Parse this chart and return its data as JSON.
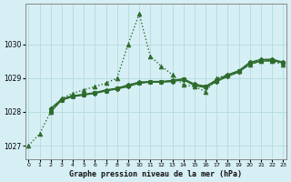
{
  "title": "Graphe pression niveau de la mer (hPa)",
  "bg_color": "#d6eff5",
  "grid_color": "#b8dde0",
  "line_color": "#2d6b2d",
  "x_ticks": [
    0,
    1,
    2,
    3,
    4,
    5,
    6,
    7,
    8,
    9,
    10,
    11,
    12,
    13,
    14,
    15,
    16,
    17,
    18,
    19,
    20,
    21,
    22,
    23
  ],
  "y_ticks": [
    1027,
    1028,
    1029,
    1030
  ],
  "ylim": [
    1026.6,
    1031.2
  ],
  "xlim": [
    -0.3,
    23.3
  ],
  "series": [
    {
      "x": [
        0,
        1,
        2,
        3,
        4,
        5,
        6,
        7,
        8,
        9,
        10,
        11,
        12,
        13,
        14,
        15,
        16,
        17,
        18,
        19,
        20,
        21,
        22,
        23
      ],
      "y": [
        1027.0,
        1027.35,
        1028.0,
        1028.4,
        1028.55,
        1028.65,
        1028.75,
        1028.85,
        1029.0,
        1030.0,
        1030.9,
        1029.65,
        1029.35,
        1029.1,
        1028.8,
        1028.75,
        1028.6,
        1029.0,
        1029.1,
        1029.2,
        1029.4,
        1029.5,
        1029.5,
        1029.4
      ],
      "linestyle": "dotted",
      "marker": "^",
      "markersize": 3.5,
      "linewidth": 1.0
    },
    {
      "x": [
        2,
        3,
        4,
        5,
        6,
        7,
        8,
        9,
        10,
        11,
        12,
        13,
        14,
        15,
        16,
        17,
        18,
        19,
        20,
        21,
        22,
        23
      ],
      "y": [
        1028.0,
        1028.35,
        1028.45,
        1028.5,
        1028.55,
        1028.62,
        1028.68,
        1028.75,
        1028.85,
        1028.88,
        1028.88,
        1028.9,
        1028.95,
        1028.78,
        1028.72,
        1028.9,
        1029.05,
        1029.18,
        1029.42,
        1029.5,
        1029.52,
        1029.45
      ],
      "linestyle": "solid",
      "marker": "D",
      "markersize": 2.5,
      "linewidth": 1.0
    },
    {
      "x": [
        2,
        3,
        4,
        5,
        6,
        7,
        8,
        9,
        10,
        11,
        12,
        13,
        14,
        15,
        16,
        17,
        18,
        19,
        20,
        21,
        22,
        23
      ],
      "y": [
        1028.1,
        1028.38,
        1028.48,
        1028.52,
        1028.57,
        1028.65,
        1028.7,
        1028.8,
        1028.88,
        1028.9,
        1028.9,
        1028.93,
        1028.98,
        1028.82,
        1028.76,
        1028.95,
        1029.1,
        1029.22,
        1029.47,
        1029.55,
        1029.56,
        1029.47
      ],
      "linestyle": "solid",
      "marker": "D",
      "markersize": 2.5,
      "linewidth": 1.0
    },
    {
      "x": [
        2,
        3,
        4,
        5,
        6,
        7,
        8,
        9,
        10,
        11,
        12,
        13,
        14,
        15,
        16,
        17,
        18,
        19,
        20,
        21,
        22,
        23
      ],
      "y": [
        1028.05,
        1028.36,
        1028.46,
        1028.51,
        1028.56,
        1028.63,
        1028.69,
        1028.77,
        1028.86,
        1028.89,
        1028.89,
        1028.91,
        1028.96,
        1028.8,
        1028.74,
        1028.92,
        1029.07,
        1029.2,
        1029.44,
        1029.52,
        1029.54,
        1029.46
      ],
      "linestyle": "dashed",
      "marker": "s",
      "markersize": 2.5,
      "linewidth": 0.9
    }
  ]
}
